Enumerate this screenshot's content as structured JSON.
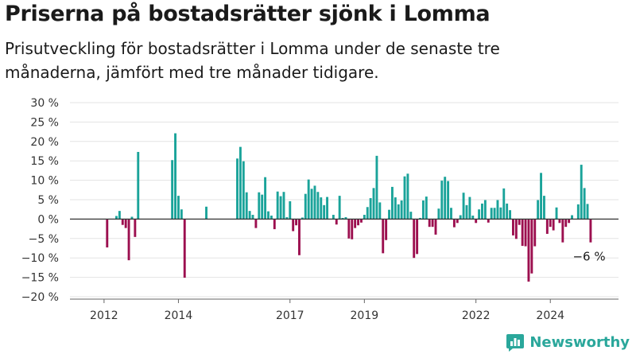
{
  "header": {
    "title": "Priserna på bostadsrätter sjönk i Lomma",
    "subtitle": "Prisutveckling för bostadsrätter i Lomma under de senaste tre månaderna, jämfört med tre månader tidigare."
  },
  "brand": {
    "name": "Newsworthy"
  },
  "colors": {
    "positive": "#1aa39a",
    "negative": "#9c0f4f",
    "grid": "#e3e3e3",
    "zero_line": "#333333"
  },
  "chart_data": {
    "type": "bar",
    "title": "",
    "xlabel": "",
    "ylabel": "",
    "ylim": [
      -20,
      30
    ],
    "y_ticks": [
      {
        "value": 30,
        "label": "30 %"
      },
      {
        "value": 25,
        "label": "25 %"
      },
      {
        "value": 20,
        "label": "20 %"
      },
      {
        "value": 15,
        "label": "15 %"
      },
      {
        "value": 10,
        "label": "10 %"
      },
      {
        "value": 5,
        "label": "5 %"
      },
      {
        "value": 0,
        "label": "0 %"
      },
      {
        "value": -5,
        "label": "−5 %"
      },
      {
        "value": -10,
        "label": "−10 %"
      },
      {
        "value": -15,
        "label": "−15 %"
      },
      {
        "value": -20,
        "label": "−20 %"
      }
    ],
    "x_ticks": [
      {
        "month": "2012-01",
        "label": "2012"
      },
      {
        "month": "2014-01",
        "label": "2014"
      },
      {
        "month": "2017-01",
        "label": "2017"
      },
      {
        "month": "2019-01",
        "label": "2019"
      },
      {
        "month": "2022-01",
        "label": "2022"
      },
      {
        "month": "2024-01",
        "label": "2024"
      }
    ],
    "annotation": {
      "label": "−6 %",
      "month": "2025-01",
      "value": -6
    },
    "series": [
      {
        "points": [
          [
            "2012-02",
            -7.3
          ],
          [
            "2012-05",
            0.8
          ],
          [
            "2012-06",
            2.1
          ],
          [
            "2012-07",
            -1.5
          ],
          [
            "2012-08",
            -2.3
          ],
          [
            "2012-09",
            -10.6
          ],
          [
            "2012-10",
            0.6
          ],
          [
            "2012-11",
            -4.6
          ],
          [
            "2012-12",
            17.3
          ],
          [
            "2013-11",
            15.2
          ],
          [
            "2013-12",
            22.1
          ],
          [
            "2014-01",
            6.0
          ],
          [
            "2014-02",
            2.5
          ],
          [
            "2014-03",
            -15.1
          ],
          [
            "2014-10",
            3.2
          ],
          [
            "2015-08",
            15.6
          ],
          [
            "2015-09",
            18.6
          ],
          [
            "2015-10",
            14.9
          ],
          [
            "2015-11",
            6.9
          ],
          [
            "2015-12",
            2.1
          ],
          [
            "2016-01",
            1.1
          ],
          [
            "2016-02",
            -2.3
          ],
          [
            "2016-03",
            6.9
          ],
          [
            "2016-04",
            6.3
          ],
          [
            "2016-05",
            10.8
          ],
          [
            "2016-06",
            2.0
          ],
          [
            "2016-07",
            0.9
          ],
          [
            "2016-08",
            -2.6
          ],
          [
            "2016-09",
            7.1
          ],
          [
            "2016-10",
            5.9
          ],
          [
            "2016-11",
            7.0
          ],
          [
            "2016-12",
            0.5
          ],
          [
            "2017-01",
            4.6
          ],
          [
            "2017-02",
            -3.1
          ],
          [
            "2017-03",
            -1.6
          ],
          [
            "2017-04",
            -9.3
          ],
          [
            "2017-05",
            0.4
          ],
          [
            "2017-06",
            6.5
          ],
          [
            "2017-07",
            10.2
          ],
          [
            "2017-08",
            7.8
          ],
          [
            "2017-09",
            8.6
          ],
          [
            "2017-10",
            7.0
          ],
          [
            "2017-11",
            5.6
          ],
          [
            "2017-12",
            3.6
          ],
          [
            "2018-01",
            5.7
          ],
          [
            "2018-02",
            0.1
          ],
          [
            "2018-03",
            1.1
          ],
          [
            "2018-04",
            -1.4
          ],
          [
            "2018-05",
            6.0
          ],
          [
            "2018-06",
            0.3
          ],
          [
            "2018-07",
            0.5
          ],
          [
            "2018-08",
            -5.0
          ],
          [
            "2018-09",
            -5.2
          ],
          [
            "2018-10",
            -2.3
          ],
          [
            "2018-11",
            -1.6
          ],
          [
            "2018-12",
            -0.9
          ],
          [
            "2019-01",
            1.1
          ],
          [
            "2019-02",
            3.1
          ],
          [
            "2019-03",
            5.4
          ],
          [
            "2019-04",
            8.0
          ],
          [
            "2019-05",
            16.3
          ],
          [
            "2019-06",
            4.3
          ],
          [
            "2019-07",
            -8.8
          ],
          [
            "2019-08",
            -5.4
          ],
          [
            "2019-09",
            2.4
          ],
          [
            "2019-10",
            8.3
          ],
          [
            "2019-11",
            5.6
          ],
          [
            "2019-12",
            3.8
          ],
          [
            "2020-01",
            4.8
          ],
          [
            "2020-02",
            11.0
          ],
          [
            "2020-03",
            11.7
          ],
          [
            "2020-04",
            1.9
          ],
          [
            "2020-05",
            -10.0
          ],
          [
            "2020-06",
            -9.0
          ],
          [
            "2020-07",
            0.3
          ],
          [
            "2020-08",
            4.8
          ],
          [
            "2020-09",
            5.8
          ],
          [
            "2020-10",
            -2.0
          ],
          [
            "2020-11",
            -2.0
          ],
          [
            "2020-12",
            -4.0
          ],
          [
            "2021-01",
            2.7
          ],
          [
            "2021-02",
            9.9
          ],
          [
            "2021-03",
            10.9
          ],
          [
            "2021-04",
            9.8
          ],
          [
            "2021-05",
            2.9
          ],
          [
            "2021-06",
            -2.1
          ],
          [
            "2021-07",
            -1.0
          ],
          [
            "2021-08",
            1.0
          ],
          [
            "2021-09",
            6.8
          ],
          [
            "2021-10",
            3.6
          ],
          [
            "2021-11",
            5.7
          ],
          [
            "2021-12",
            0.9
          ],
          [
            "2022-01",
            -1.0
          ],
          [
            "2022-02",
            2.5
          ],
          [
            "2022-03",
            4.0
          ],
          [
            "2022-04",
            4.9
          ],
          [
            "2022-05",
            -0.9
          ],
          [
            "2022-06",
            2.9
          ],
          [
            "2022-07",
            2.9
          ],
          [
            "2022-08",
            4.9
          ],
          [
            "2022-09",
            3.0
          ],
          [
            "2022-10",
            7.9
          ],
          [
            "2022-11",
            4.0
          ],
          [
            "2022-12",
            2.3
          ],
          [
            "2023-01",
            -4.2
          ],
          [
            "2023-02",
            -5.1
          ],
          [
            "2023-03",
            -1.5
          ],
          [
            "2023-04",
            -6.9
          ],
          [
            "2023-05",
            -7.0
          ],
          [
            "2023-06",
            -16.1
          ],
          [
            "2023-07",
            -14.0
          ],
          [
            "2023-08",
            -7.0
          ],
          [
            "2023-09",
            4.9
          ],
          [
            "2023-10",
            11.9
          ],
          [
            "2023-11",
            6.0
          ],
          [
            "2023-12",
            -3.8
          ],
          [
            "2024-01",
            -2.0
          ],
          [
            "2024-02",
            -2.9
          ],
          [
            "2024-03",
            3.0
          ],
          [
            "2024-04",
            -1.0
          ],
          [
            "2024-05",
            -6.0
          ],
          [
            "2024-06",
            -2.0
          ],
          [
            "2024-07",
            -1.0
          ],
          [
            "2024-08",
            1.0
          ],
          [
            "2024-10",
            3.8
          ],
          [
            "2024-11",
            14.0
          ],
          [
            "2024-12",
            8.0
          ],
          [
            "2025-01",
            3.9
          ],
          [
            "2025-02",
            -6.0
          ]
        ]
      }
    ]
  }
}
